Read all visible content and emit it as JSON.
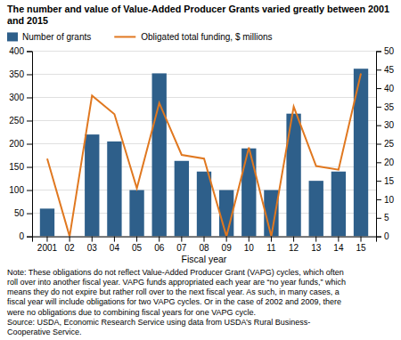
{
  "chart_data": {
    "type": "bar",
    "title": "The number and value of Value-Added Producer Grants varied greatly between 2001\nand 2015",
    "categories": [
      "2001",
      "02",
      "03",
      "04",
      "05",
      "06",
      "07",
      "08",
      "09",
      "10",
      "11",
      "12",
      "13",
      "14",
      "15"
    ],
    "series": [
      {
        "name": "Number of grants",
        "type": "bar",
        "color": "#2e5f8a",
        "values": [
          60,
          0,
          220,
          205,
          100,
          352,
          163,
          140,
          100,
          190,
          100,
          265,
          120,
          140,
          362
        ]
      },
      {
        "name": "Obligated total funding, $ millions",
        "type": "line",
        "axis": "y2",
        "color": "#e07820",
        "values": [
          21,
          0,
          38,
          33,
          13,
          36,
          22,
          21,
          0,
          24,
          0,
          35,
          19,
          18,
          44
        ]
      }
    ],
    "xlabel": "Fiscal year",
    "ylim": [
      0,
      400
    ],
    "yticks": [
      0,
      50,
      100,
      150,
      200,
      250,
      300,
      350,
      400
    ],
    "y2lim": [
      0,
      50
    ],
    "y2ticks": [
      0,
      5,
      10,
      15,
      20,
      25,
      30,
      35,
      40,
      45,
      50
    ],
    "grid": true,
    "legend": "top",
    "annotations": [
      "Note: These obligations do not reflect Value-Added Producer Grant (VAPG) cycles, which often\nroll over into another fiscal year. VAPG funds appropriated each year are “no year funds,” which\nmeans they do not expire but rather roll over to the next fiscal year. As such, in many cases, a\nfiscal year will include obligations for two VAPG cycles. Or in the case of 2002 and 2009, there\nwere no obligations due to combining fiscal years for one VAPG cycle.\nSource: USDA, Economic Research Service using data from USDA’s Rural Business-\nCooperative Service."
    ]
  }
}
